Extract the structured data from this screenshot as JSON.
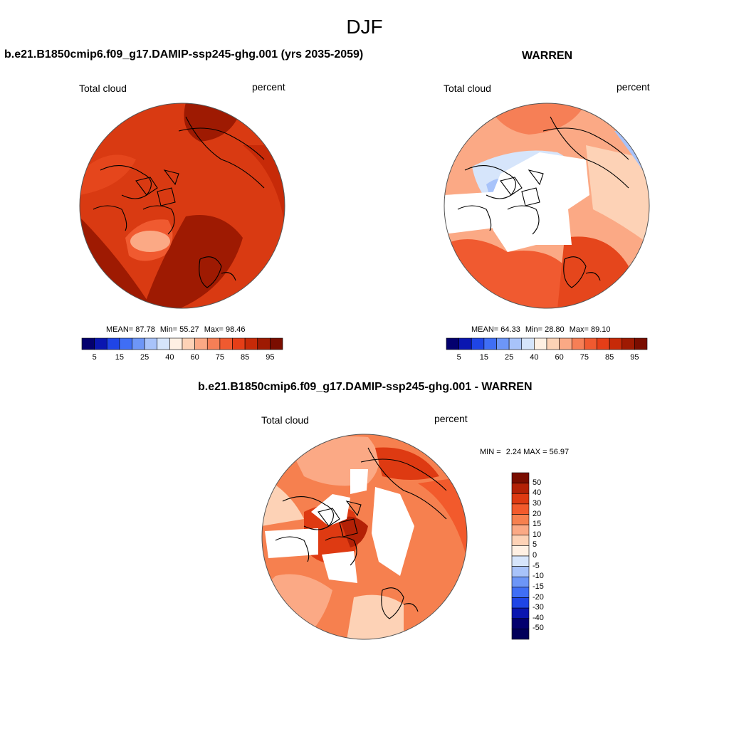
{
  "title": "DJF",
  "panels": [
    {
      "title": "b.e21.B1850cmip6.f09_g17.DAMIP-ssp245-ghg.001 (yrs 2035-2059)",
      "variable": "Total cloud",
      "units": "percent",
      "stats": {
        "mean_label": "MEAN=",
        "mean": "87.78",
        "min_label": "Min=",
        "min": "55.27",
        "max_label": "Max=",
        "max": "98.46"
      }
    },
    {
      "title": "WARREN",
      "variable": "Total cloud",
      "units": "percent",
      "stats": {
        "mean_label": "MEAN=",
        "mean": "64.33",
        "min_label": "Min=",
        "min": "28.80",
        "max_label": "Max=",
        "max": "89.10"
      }
    },
    {
      "title": "b.e21.B1850cmip6.f09_g17.DAMIP-ssp245-ghg.001 - WARREN",
      "variable": "Total cloud",
      "units": "percent",
      "stats": {
        "min_label": "MIN =",
        "min": "2.24",
        "max_label": "MAX =",
        "max": "56.97"
      }
    }
  ],
  "colorbar_abs": {
    "tick_labels": [
      "5",
      "15",
      "25",
      "40",
      "60",
      "75",
      "85",
      "95"
    ],
    "colors": [
      "#03006e",
      "#0a16b0",
      "#1f45e6",
      "#3f6ef5",
      "#6d96f7",
      "#a8c3fa",
      "#d6e5fb",
      "#fff0e3",
      "#fdd2b6",
      "#fba985",
      "#f67f56",
      "#f05a30",
      "#e53e17",
      "#c72a08",
      "#9e1a02",
      "#7a0d00"
    ]
  },
  "colorbar_diff": {
    "tick_labels": [
      "50",
      "40",
      "30",
      "20",
      "15",
      "10",
      "5",
      "0",
      "-5",
      "-10",
      "-15",
      "-20",
      "-30",
      "-40",
      "-50"
    ],
    "colors": [
      "#7a0d00",
      "#b32106",
      "#de3a12",
      "#f25a2c",
      "#f6804f",
      "#fba985",
      "#fdd2b6",
      "#fff0e3",
      "#d6e5fb",
      "#a8c3fa",
      "#6d96f7",
      "#3f6ef5",
      "#1f45e6",
      "#0a16b0",
      "#03006e",
      "#02005a"
    ]
  },
  "map_fields": {
    "panel1": {
      "base": "#d93a12",
      "patches": [
        {
          "value": 95,
          "color": "#9e1a02"
        },
        {
          "value": 85,
          "color": "#c72a08"
        },
        {
          "value": 75,
          "color": "#f05a30"
        },
        {
          "value": 60,
          "color": "#fba985"
        }
      ]
    },
    "panel2": {
      "base": "#f67f56",
      "patches": [
        {
          "value": 40,
          "color": "#d6e5fb"
        },
        {
          "value": 25,
          "color": "#a8c3fa"
        },
        {
          "value": 60,
          "color": "#fdd2b6"
        },
        {
          "value": 85,
          "color": "#e53e17"
        }
      ]
    },
    "panel3": {
      "base": "#f67f56",
      "patches": [
        {
          "value": 5,
          "color": "#fdd2b6"
        },
        {
          "value": 10,
          "color": "#fba985"
        },
        {
          "value": 30,
          "color": "#de3a12"
        },
        {
          "value": 40,
          "color": "#b32106"
        }
      ]
    }
  }
}
